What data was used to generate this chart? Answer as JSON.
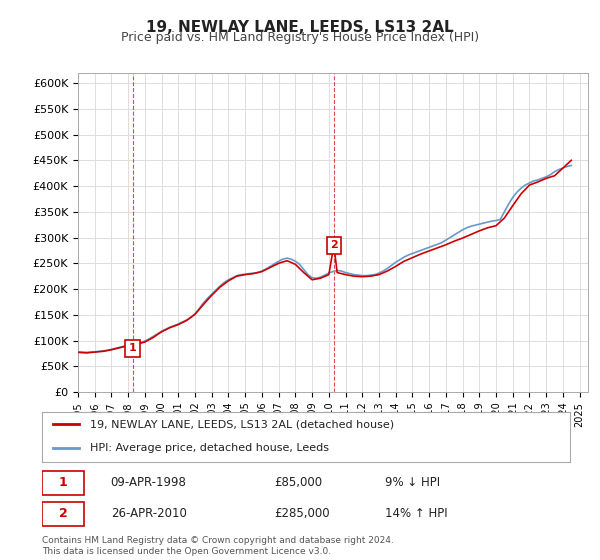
{
  "title": "19, NEWLAY LANE, LEEDS, LS13 2AL",
  "subtitle": "Price paid vs. HM Land Registry's House Price Index (HPI)",
  "ylabel_ticks": [
    "£0",
    "£50K",
    "£100K",
    "£150K",
    "£200K",
    "£250K",
    "£300K",
    "£350K",
    "£400K",
    "£450K",
    "£500K",
    "£550K",
    "£600K"
  ],
  "ytick_values": [
    0,
    50000,
    100000,
    150000,
    200000,
    250000,
    300000,
    350000,
    400000,
    450000,
    500000,
    550000,
    600000
  ],
  "ylim": [
    0,
    620000
  ],
  "xlim_start": 1995.0,
  "xlim_end": 2025.5,
  "transaction1": {
    "year": 1998.27,
    "price": 85000,
    "label": "1",
    "date": "09-APR-1998",
    "hpi_diff": "9% ↓ HPI"
  },
  "transaction2": {
    "year": 2010.32,
    "price": 285000,
    "label": "2",
    "date": "26-APR-2010",
    "hpi_diff": "14% ↑ HPI"
  },
  "line_property_color": "#cc0000",
  "line_hpi_color": "#6699cc",
  "dashed_line_color": "#cc0000",
  "legend_label_property": "19, NEWLAY LANE, LEEDS, LS13 2AL (detached house)",
  "legend_label_hpi": "HPI: Average price, detached house, Leeds",
  "footer": "Contains HM Land Registry data © Crown copyright and database right 2024.\nThis data is licensed under the Open Government Licence v3.0.",
  "background_color": "#ffffff",
  "grid_color": "#dddddd",
  "hpi_years": [
    1995.0,
    1995.25,
    1995.5,
    1995.75,
    1996.0,
    1996.25,
    1996.5,
    1996.75,
    1997.0,
    1997.25,
    1997.5,
    1997.75,
    1998.0,
    1998.25,
    1998.5,
    1998.75,
    1999.0,
    1999.25,
    1999.5,
    1999.75,
    2000.0,
    2000.25,
    2000.5,
    2000.75,
    2001.0,
    2001.25,
    2001.5,
    2001.75,
    2002.0,
    2002.25,
    2002.5,
    2002.75,
    2003.0,
    2003.25,
    2003.5,
    2003.75,
    2004.0,
    2004.25,
    2004.5,
    2004.75,
    2005.0,
    2005.25,
    2005.5,
    2005.75,
    2006.0,
    2006.25,
    2006.5,
    2006.75,
    2007.0,
    2007.25,
    2007.5,
    2007.75,
    2008.0,
    2008.25,
    2008.5,
    2008.75,
    2009.0,
    2009.25,
    2009.5,
    2009.75,
    2010.0,
    2010.25,
    2010.5,
    2010.75,
    2011.0,
    2011.25,
    2011.5,
    2011.75,
    2012.0,
    2012.25,
    2012.5,
    2012.75,
    2013.0,
    2013.25,
    2013.5,
    2013.75,
    2014.0,
    2014.25,
    2014.5,
    2014.75,
    2015.0,
    2015.25,
    2015.5,
    2015.75,
    2016.0,
    2016.25,
    2016.5,
    2016.75,
    2017.0,
    2017.25,
    2017.5,
    2017.75,
    2018.0,
    2018.25,
    2018.5,
    2018.75,
    2019.0,
    2019.25,
    2019.5,
    2019.75,
    2020.0,
    2020.25,
    2020.5,
    2020.75,
    2021.0,
    2021.25,
    2021.5,
    2021.75,
    2022.0,
    2022.25,
    2022.5,
    2022.75,
    2023.0,
    2023.25,
    2023.5,
    2023.75,
    2024.0,
    2024.25,
    2024.5
  ],
  "hpi_values": [
    78000,
    77500,
    77000,
    77500,
    78000,
    79000,
    80000,
    81000,
    83000,
    85000,
    87000,
    89000,
    91000,
    92000,
    94000,
    96000,
    99000,
    103000,
    108000,
    113000,
    118000,
    122000,
    126000,
    129000,
    132000,
    136000,
    140000,
    145000,
    152000,
    162000,
    173000,
    182000,
    190000,
    198000,
    206000,
    213000,
    218000,
    222000,
    226000,
    228000,
    229000,
    230000,
    231000,
    232000,
    235000,
    239000,
    244000,
    249000,
    254000,
    258000,
    260000,
    258000,
    254000,
    248000,
    238000,
    228000,
    222000,
    221000,
    223000,
    227000,
    231000,
    234000,
    236000,
    235000,
    232000,
    230000,
    228000,
    227000,
    226000,
    226000,
    227000,
    228000,
    231000,
    235000,
    240000,
    246000,
    252000,
    257000,
    262000,
    266000,
    269000,
    272000,
    275000,
    278000,
    281000,
    284000,
    287000,
    290000,
    295000,
    300000,
    305000,
    310000,
    315000,
    319000,
    322000,
    324000,
    326000,
    328000,
    330000,
    332000,
    333000,
    335000,
    350000,
    365000,
    378000,
    388000,
    396000,
    402000,
    406000,
    410000,
    412000,
    415000,
    418000,
    422000,
    428000,
    432000,
    435000,
    438000,
    440000
  ],
  "prop_years": [
    1995.0,
    1995.5,
    1996.0,
    1996.5,
    1997.0,
    1997.5,
    1998.0,
    1998.3,
    1998.5,
    1999.0,
    1999.5,
    2000.0,
    2000.5,
    2001.0,
    2001.5,
    2002.0,
    2002.5,
    2003.0,
    2003.5,
    2004.0,
    2004.5,
    2005.0,
    2005.5,
    2006.0,
    2006.5,
    2007.0,
    2007.5,
    2008.0,
    2008.5,
    2009.0,
    2009.5,
    2010.0,
    2010.3,
    2010.5,
    2011.0,
    2011.5,
    2012.0,
    2012.5,
    2013.0,
    2013.5,
    2014.0,
    2014.5,
    2015.0,
    2015.5,
    2016.0,
    2016.5,
    2017.0,
    2017.5,
    2018.0,
    2018.5,
    2019.0,
    2019.5,
    2020.0,
    2020.5,
    2021.0,
    2021.5,
    2022.0,
    2022.5,
    2023.0,
    2023.5,
    2024.0,
    2024.5
  ],
  "prop_values": [
    77000,
    76000,
    77500,
    79000,
    82000,
    86000,
    90000,
    85000,
    93000,
    97000,
    106000,
    117000,
    125000,
    131000,
    139000,
    151000,
    170000,
    188000,
    204000,
    216000,
    225000,
    228000,
    230000,
    234000,
    242000,
    250000,
    255000,
    248000,
    232000,
    218000,
    221000,
    228000,
    285000,
    232000,
    228000,
    225000,
    224000,
    225000,
    228000,
    235000,
    244000,
    254000,
    261000,
    268000,
    274000,
    280000,
    286000,
    293000,
    299000,
    306000,
    313000,
    319000,
    323000,
    338000,
    362000,
    385000,
    402000,
    408000,
    415000,
    420000,
    435000,
    450000
  ]
}
